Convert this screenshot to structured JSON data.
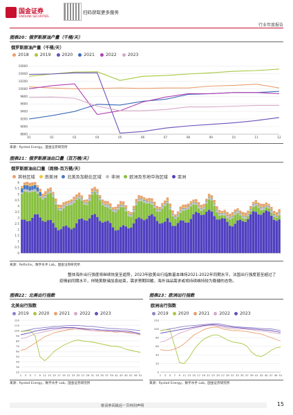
{
  "header": {
    "brand_cn": "国金证券",
    "brand_en": "SINOLINK SECURITIES",
    "qr_caption": "扫码获取更多服务",
    "report_type": "行业年度报告"
  },
  "figure20": {
    "caption": "图表20：俄罗斯原油产量（千桶/天）",
    "inner_title": "俄罗斯原油产量（千桶/天）",
    "source": "来源：Rystad Energy，国金证券研究所",
    "chart_data": {
      "type": "line",
      "title": "俄罗斯原油产量（千桶/天）",
      "x": [
        "01",
        "02",
        "03",
        "04",
        "05",
        "06",
        "07",
        "08",
        "09",
        "10",
        "11",
        "12"
      ],
      "ylim": [
        8800,
        10700
      ],
      "yticks": [
        8800,
        9000,
        9200,
        9400,
        9600,
        9800,
        10000,
        10200,
        10400,
        10600
      ],
      "series": [
        {
          "name": "2018",
          "color": "#e8a070",
          "values": [
            10050,
            10020,
            10000,
            10010,
            10020,
            10010,
            10020,
            10020,
            10070,
            10090,
            10120,
            10020
          ]
        },
        {
          "name": "2019",
          "color": "#a8c840",
          "values": [
            10330,
            10390,
            10440,
            10450,
            10220,
            10330,
            10350,
            10390,
            10420,
            10460,
            10480,
            10520
          ]
        },
        {
          "name": "2020",
          "color": "#6a50b8",
          "values": [
            10380,
            10390,
            10420,
            10420,
            8830,
            8870,
            8960,
            9020,
            9060,
            9100,
            9160,
            9240
          ]
        },
        {
          "name": "2021",
          "color": "#3a6ab8",
          "values": [
            9200,
            9290,
            9400,
            9590,
            9570,
            9670,
            9720,
            9850,
            9870,
            9900,
            9900,
            9930
          ]
        },
        {
          "name": "2022",
          "color": "#b040b0",
          "values": [
            10000,
            10080,
            10130,
            9320,
            9420,
            9650,
            9780,
            9870,
            9870,
            9900,
            9900,
            9870
          ]
        },
        {
          "name": "2023",
          "color": "#d8a8c8",
          "values": [
            9770,
            9780,
            9750,
            9540,
            9420,
            9420,
            9450,
            9520,
            9520,
            9540,
            9560,
            9560
          ]
        }
      ]
    }
  },
  "figure21": {
    "caption": "图表21：俄罗斯原油出口量（百万桶/天）",
    "inner_title": "俄罗斯原油出口量（周频-百万桶/天）",
    "source": "来源：Refinitiv，数字水手 Lab，国金证券研究所",
    "chart_data": {
      "type": "bar",
      "title": "俄罗斯原油出口量（周频-百万桶/天）",
      "stacked": true,
      "ylim": [
        0,
        6
      ],
      "yticks": [
        0,
        0.5,
        1,
        1.5,
        2,
        2.5,
        3,
        3.5,
        4,
        4.5,
        5,
        5.5,
        6
      ],
      "weeks": 100,
      "series": [
        {
          "name": "其他区域",
          "color": "#e8a070"
        },
        {
          "name": "南美洲",
          "color": "#f0c840"
        },
        {
          "name": "北美及加勒比区域",
          "color": "#4878c8"
        },
        {
          "name": "非洲",
          "color": "#c0c0c0"
        },
        {
          "name": "欧洲及东地中海区域",
          "color": "#88c040"
        },
        {
          "name": "亚洲",
          "color": "#5040c0"
        }
      ]
    }
  },
  "paragraph": "整体海外出行强度将继续恢复至趋势，2023年欧美出行指数基本维持2021-2022年同期水平，法国出行强度甚至超过了疫情前同期水平，伴随美联储加息结束，需求预期回暖，海外油品需求或将持续维持较为稳健的态势。",
  "figure22": {
    "caption": "图表22：北美出行指数",
    "inner_title": "北美出行指数",
    "source": "来源：Rystad Energy，数字水手 Lab，国金证券研究所",
    "chart_data": {
      "type": "line",
      "title": "北美出行指数",
      "x": [
        "1",
        "3",
        "5",
        "7",
        "9",
        "11",
        "13",
        "15",
        "17",
        "19",
        "21",
        "23",
        "25",
        "27",
        "29",
        "31",
        "33",
        "35",
        "37",
        "39",
        "41",
        "43",
        "45",
        "47",
        "49",
        "51"
      ],
      "ylim": [
        20,
        120
      ],
      "yticks": [
        20,
        30,
        40,
        50,
        60,
        70,
        80,
        90,
        100,
        110,
        120
      ],
      "series": [
        {
          "name": "2019",
          "color": "#9080c8",
          "values": [
            98,
            100,
            102,
            104,
            105,
            106,
            107,
            108,
            108,
            109,
            110,
            110,
            110,
            109,
            108,
            108,
            107,
            106,
            105,
            104,
            104,
            103,
            103,
            102,
            101,
            100
          ]
        },
        {
          "name": "2020",
          "color": "#a8c840",
          "values": [
            98,
            99,
            100,
            90,
            50,
            42,
            50,
            60,
            66,
            72,
            76,
            80,
            82,
            80,
            79,
            78,
            76,
            74,
            72,
            70,
            70,
            68,
            64,
            62,
            60,
            58
          ]
        },
        {
          "name": "2021",
          "color": "#e8a070",
          "values": [
            62,
            64,
            70,
            76,
            82,
            88,
            92,
            96,
            98,
            100,
            102,
            103,
            104,
            103,
            102,
            100,
            99,
            99,
            98,
            98,
            97,
            98,
            97,
            96,
            94,
            92
          ]
        },
        {
          "name": "2022",
          "color": "#d8a8c8",
          "values": [
            85,
            86,
            90,
            94,
            96,
            98,
            100,
            102,
            103,
            104,
            104,
            104,
            103,
            102,
            101,
            100,
            100,
            99,
            99,
            98,
            99,
            98,
            96,
            95,
            94,
            93
          ]
        },
        {
          "name": "2023",
          "color": "#6a50b8",
          "values": [
            92,
            94,
            96,
            99,
            101,
            102,
            104,
            105,
            105,
            106,
            106,
            106,
            105,
            104,
            103,
            103,
            102,
            101,
            101,
            100,
            100,
            99,
            99,
            98,
            96,
            94
          ]
        }
      ]
    }
  },
  "figure23": {
    "caption": "图表23：欧洲出行指数",
    "inner_title": "欧洲出行指数",
    "source": "来源：Rystad Energy，数字水手 Lab，国金证券研究所",
    "chart_data": {
      "type": "line",
      "title": "欧洲出行指数",
      "x": [
        "1",
        "3",
        "5",
        "7",
        "9",
        "11",
        "13",
        "15",
        "17",
        "19",
        "21",
        "23",
        "25",
        "27",
        "29",
        "31",
        "33",
        "35",
        "37",
        "39",
        "41",
        "43",
        "45",
        "47",
        "49",
        "51"
      ],
      "ylim": [
        0,
        120
      ],
      "yticks": [
        0,
        20,
        40,
        60,
        80,
        100,
        120
      ],
      "series": [
        {
          "name": "2019",
          "color": "#9080c8",
          "values": [
            96,
            98,
            100,
            102,
            104,
            106,
            107,
            108,
            109,
            110,
            111,
            112,
            112,
            110,
            108,
            106,
            105,
            104,
            103,
            103,
            102,
            101,
            100,
            100,
            98,
            96
          ]
        },
        {
          "name": "2020",
          "color": "#a8c840",
          "values": [
            96,
            98,
            98,
            60,
            22,
            20,
            34,
            52,
            66,
            76,
            82,
            86,
            86,
            80,
            74,
            70,
            68,
            66,
            60,
            46,
            38,
            36,
            42,
            50,
            56,
            58
          ]
        },
        {
          "name": "2021",
          "color": "#e8a070",
          "values": [
            52,
            50,
            50,
            54,
            58,
            66,
            76,
            86,
            92,
            98,
            102,
            104,
            104,
            100,
            98,
            96,
            96,
            95,
            94,
            92,
            90,
            88,
            84,
            80,
            76,
            72
          ]
        },
        {
          "name": "2022",
          "color": "#d8a8c8",
          "values": [
            70,
            72,
            78,
            84,
            90,
            94,
            98,
            102,
            104,
            106,
            108,
            108,
            106,
            104,
            102,
            101,
            100,
            100,
            99,
            98,
            96,
            95,
            94,
            92,
            90,
            88
          ]
        },
        {
          "name": "2023",
          "color": "#6a50b8",
          "values": [
            90,
            92,
            94,
            96,
            98,
            100,
            102,
            104,
            106,
            108,
            109,
            110,
            109,
            107,
            105,
            104,
            103,
            102,
            101,
            100,
            99,
            98,
            97,
            96,
            94,
            92
          ]
        }
      ]
    }
  },
  "footer": {
    "disclaimer": "敬请参阅最后一页特别声明",
    "page_number": "15"
  }
}
